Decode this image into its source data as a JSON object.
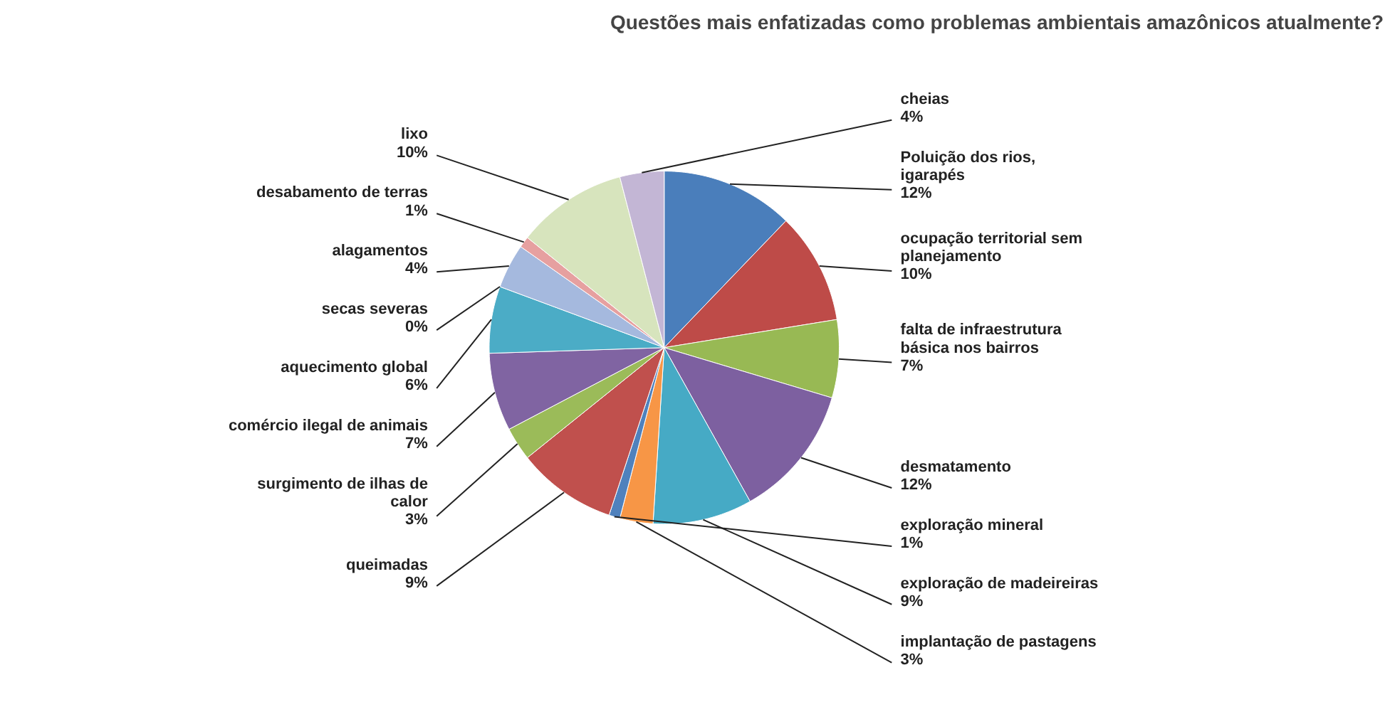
{
  "chart_data": {
    "type": "pie",
    "title": "Questões mais enfatizadas como problemas ambientais amazônicos atualmente?",
    "categories": [
      "Poluição dos rios, igarapés",
      "ocupação territorial sem planejamento",
      "falta de infraestrutura básica nos bairros",
      "desmatamento",
      "exploração de madeireiras",
      "implantação de pastagens",
      "exploração mineral",
      "queimadas",
      "surgimento de ilhas de calor",
      "comércio ilegal de animais",
      "aquecimento global",
      "secas severas",
      "alagamentos",
      "desabamento de terras",
      "lixo",
      "cheias"
    ],
    "values": [
      12,
      10,
      7,
      12,
      9,
      3,
      1,
      9,
      3,
      7,
      6,
      0,
      4,
      1,
      10,
      4
    ],
    "value_labels": [
      "12%",
      "10%",
      "7%",
      "12%",
      "9%",
      "3%",
      "1%",
      "9%",
      "3%",
      "7%",
      "6%",
      "0%",
      "4%",
      "1%",
      "10%",
      "4%"
    ],
    "colors": [
      "#4a7ebb",
      "#be4b48",
      "#98b954",
      "#7d60a0",
      "#46aac5",
      "#f79646",
      "#4f81bd",
      "#c0504d",
      "#9bbb59",
      "#8064a2",
      "#4bacc6",
      "#f79646",
      "#a5b9de",
      "#e6a0a0",
      "#d7e4bd",
      "#c3b6d5"
    ],
    "legend": false
  }
}
